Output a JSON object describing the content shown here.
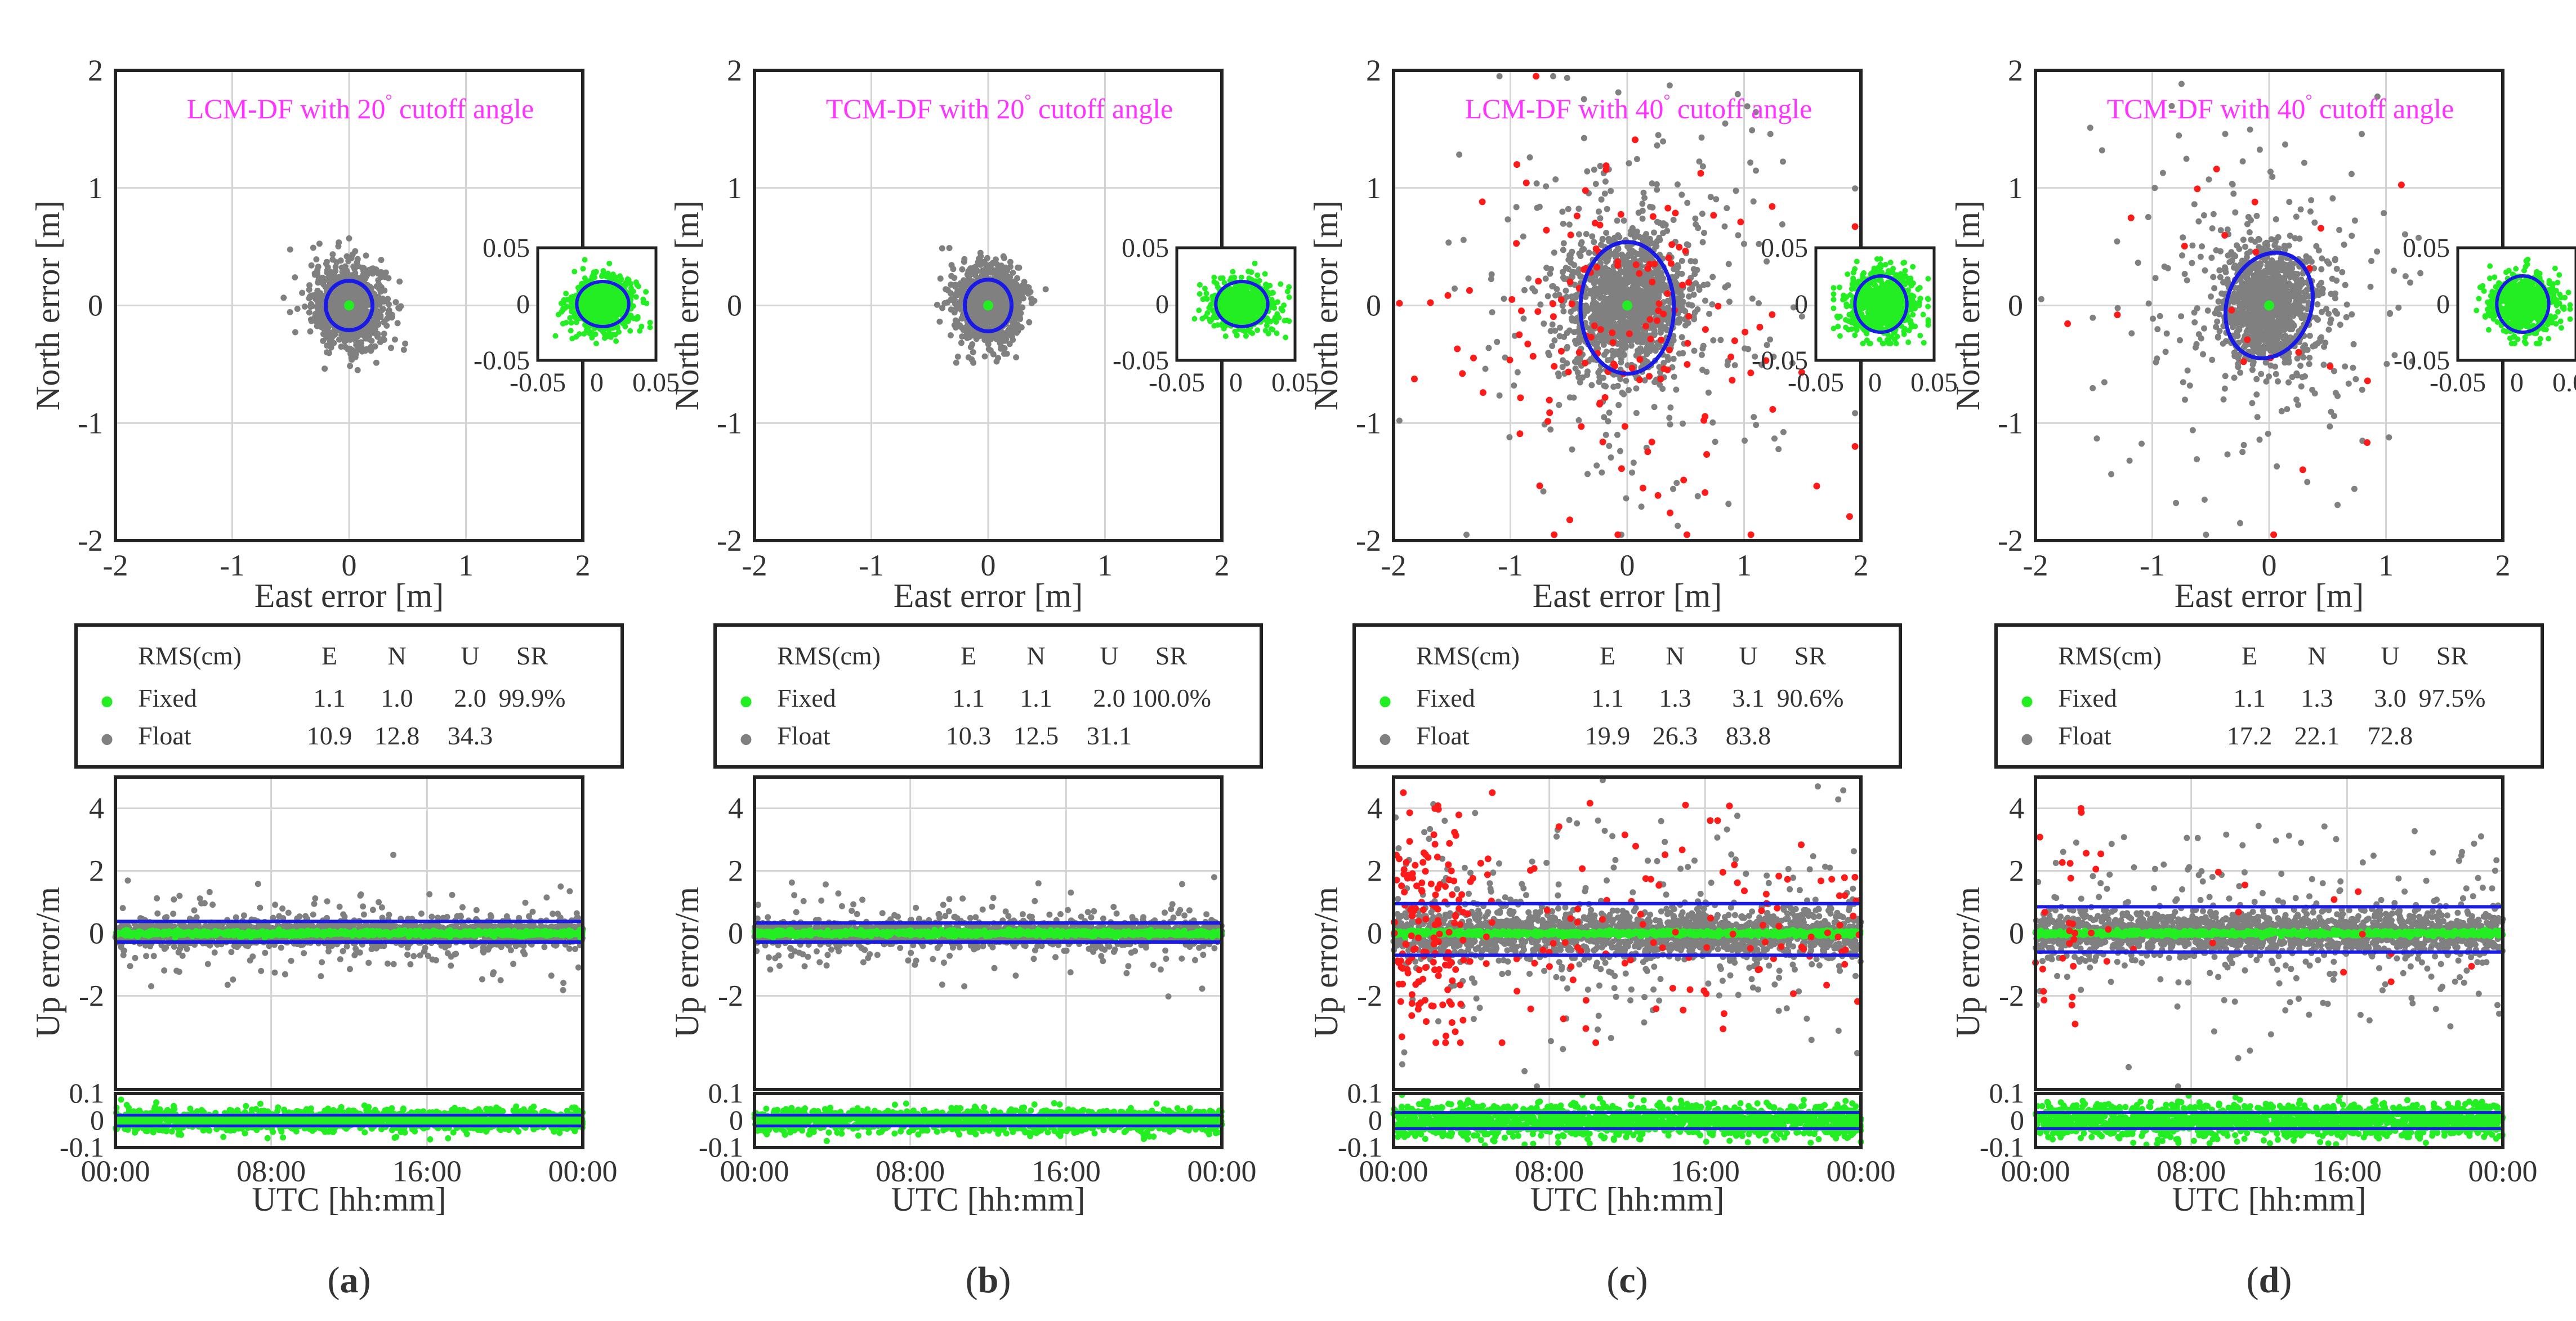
{
  "figure": {
    "colors": {
      "fixed": "#22ee22",
      "float": "#808080",
      "wrong_fix": "#ff1a1a",
      "ellipse": "#1a1ae6",
      "title": "#ff33ff",
      "frame": "#222222",
      "grid": "#d4d4d4"
    },
    "legend_markers": {
      "fixed": "•",
      "float": "•"
    },
    "panels": [
      {
        "id": "a",
        "letter": "a",
        "title_pre": "LCM-DF with 20",
        "title_deg": "°",
        "title_post": "cutoff angle",
        "table": {
          "header": [
            "RMS(cm)",
            "E",
            "N",
            "U",
            "SR"
          ],
          "rows": [
            {
              "label": "Fixed",
              "type": "fixed",
              "values": [
                "1.1",
                "1.0",
                "2.0",
                "99.9%"
              ]
            },
            {
              "label": "Float",
              "type": "float",
              "values": [
                "10.9",
                "12.8",
                "34.3",
                ""
              ]
            }
          ]
        },
        "cloud": {
          "sx": 0.16,
          "sy": 0.18,
          "count": 900,
          "outlier_count": 0,
          "red_count": 0
        },
        "ellipse": {
          "cx": 0.0,
          "cy": 0.0,
          "rx": 0.2,
          "ry": 0.21,
          "rotation_deg": 0
        },
        "inset": {
          "sx": 0.014,
          "sy": 0.012,
          "rx": 0.022,
          "ry": 0.02
        },
        "up": {
          "sd": 0.2,
          "spread": 0.45,
          "bound_hi": 0.38,
          "bound_lo": -0.28,
          "red_count": 0
        },
        "fixed_up": {
          "sd": 0.02,
          "bound": 0.02
        }
      },
      {
        "id": "b",
        "letter": "b",
        "title_pre": "TCM-DF with 20",
        "title_deg": "°",
        "title_post": "cutoff angle",
        "table": {
          "header": [
            "RMS(cm)",
            "E",
            "N",
            "U",
            "SR"
          ],
          "rows": [
            {
              "label": "Fixed",
              "type": "fixed",
              "values": [
                "1.1",
                "1.1",
                "2.0",
                "100.0%"
              ]
            },
            {
              "label": "Float",
              "type": "float",
              "values": [
                "10.3",
                "12.5",
                "31.1",
                ""
              ]
            }
          ]
        },
        "cloud": {
          "sx": 0.15,
          "sy": 0.17,
          "count": 900,
          "outlier_count": 0,
          "red_count": 0
        },
        "ellipse": {
          "cx": 0.0,
          "cy": 0.0,
          "rx": 0.2,
          "ry": 0.22,
          "rotation_deg": 0
        },
        "inset": {
          "sx": 0.014,
          "sy": 0.011,
          "rx": 0.022,
          "ry": 0.02
        },
        "up": {
          "sd": 0.18,
          "spread": 0.4,
          "bound_hi": 0.33,
          "bound_lo": -0.28,
          "red_count": 0
        },
        "fixed_up": {
          "sd": 0.02,
          "bound": 0.02
        }
      },
      {
        "id": "c",
        "letter": "c",
        "title_pre": "LCM-DF with 40",
        "title_deg": "°",
        "title_post": "cutoff angle",
        "table": {
          "header": [
            "RMS(cm)",
            "E",
            "N",
            "U",
            "SR"
          ],
          "rows": [
            {
              "label": "Fixed",
              "type": "fixed",
              "values": [
                "1.1",
                "1.3",
                "3.1",
                "90.6%"
              ]
            },
            {
              "label": "Float",
              "type": "float",
              "values": [
                "19.9",
                "26.3",
                "83.8",
                ""
              ]
            }
          ]
        },
        "cloud": {
          "sx": 0.25,
          "sy": 0.3,
          "count": 1200,
          "outlier_count": 260,
          "red_count": 150
        },
        "ellipse": {
          "cx": 0.0,
          "cy": -0.02,
          "rx": 0.4,
          "ry": 0.56,
          "rotation_deg": 0
        },
        "inset": {
          "sx": 0.016,
          "sy": 0.015,
          "rx": 0.022,
          "ry": 0.025
        },
        "up": {
          "sd": 0.45,
          "spread": 1.0,
          "bound_hi": 0.95,
          "bound_lo": -0.7,
          "red_count": 260
        },
        "fixed_up": {
          "sd": 0.03,
          "bound": 0.03
        }
      },
      {
        "id": "d",
        "letter": "d",
        "title_pre": "TCM-DF with 40",
        "title_deg": "°",
        "title_post": "cutoff angle",
        "table": {
          "header": [
            "RMS(cm)",
            "E",
            "N",
            "U",
            "SR"
          ],
          "rows": [
            {
              "label": "Fixed",
              "type": "fixed",
              "values": [
                "1.1",
                "1.3",
                "3.0",
                "97.5%"
              ]
            },
            {
              "label": "Float",
              "type": "float",
              "values": [
                "17.2",
                "22.1",
                "72.8",
                ""
              ]
            }
          ]
        },
        "cloud": {
          "sx": 0.22,
          "sy": 0.25,
          "count": 1100,
          "outlier_count": 170,
          "red_count": 22
        },
        "ellipse": {
          "cx": 0.0,
          "cy": 0.0,
          "rx": 0.36,
          "ry": 0.46,
          "rotation_deg": 20
        },
        "inset": {
          "sx": 0.014,
          "sy": 0.014,
          "rx": 0.022,
          "ry": 0.025
        },
        "up": {
          "sd": 0.38,
          "spread": 0.9,
          "bound_hi": 0.85,
          "bound_lo": -0.6,
          "red_count": 40
        },
        "fixed_up": {
          "sd": 0.03,
          "bound": 0.03
        }
      }
    ]
  },
  "chart_data": [
    {
      "type": "scatter",
      "name": "horizontal-error",
      "xlabel": "East error [m]",
      "ylabel": "North error [m]",
      "xlim": [
        -2,
        2
      ],
      "ylim": [
        -2,
        2
      ],
      "xticks": [
        "-2",
        "-1",
        "0",
        "1",
        "2"
      ],
      "yticks": [
        "2",
        "1",
        "0",
        "-1",
        "-2"
      ],
      "inset_xlim": [
        -0.05,
        0.05
      ],
      "inset_ylim": [
        -0.05,
        0.05
      ],
      "inset_xticks": [
        "-0.05",
        "0",
        "0.05"
      ],
      "inset_yticks": [
        "0.05",
        "0",
        "-0.05"
      ],
      "grid": true,
      "series": [
        "Fixed",
        "Float"
      ]
    },
    {
      "type": "scatter",
      "name": "up-error",
      "xlabel": "UTC [hh:mm]",
      "ylabel": "Up error/m",
      "xticks": [
        "00:00",
        "08:00",
        "16:00",
        "00:00"
      ],
      "upper_ylim": [
        -5,
        5
      ],
      "upper_yticks": [
        "4",
        "2",
        "0",
        "-2"
      ],
      "lower_ylim": [
        -0.1,
        0.1
      ],
      "lower_yticks": [
        "0.1",
        "0",
        "-0.1"
      ],
      "grid": true,
      "series": [
        "Fixed",
        "Float"
      ]
    }
  ]
}
